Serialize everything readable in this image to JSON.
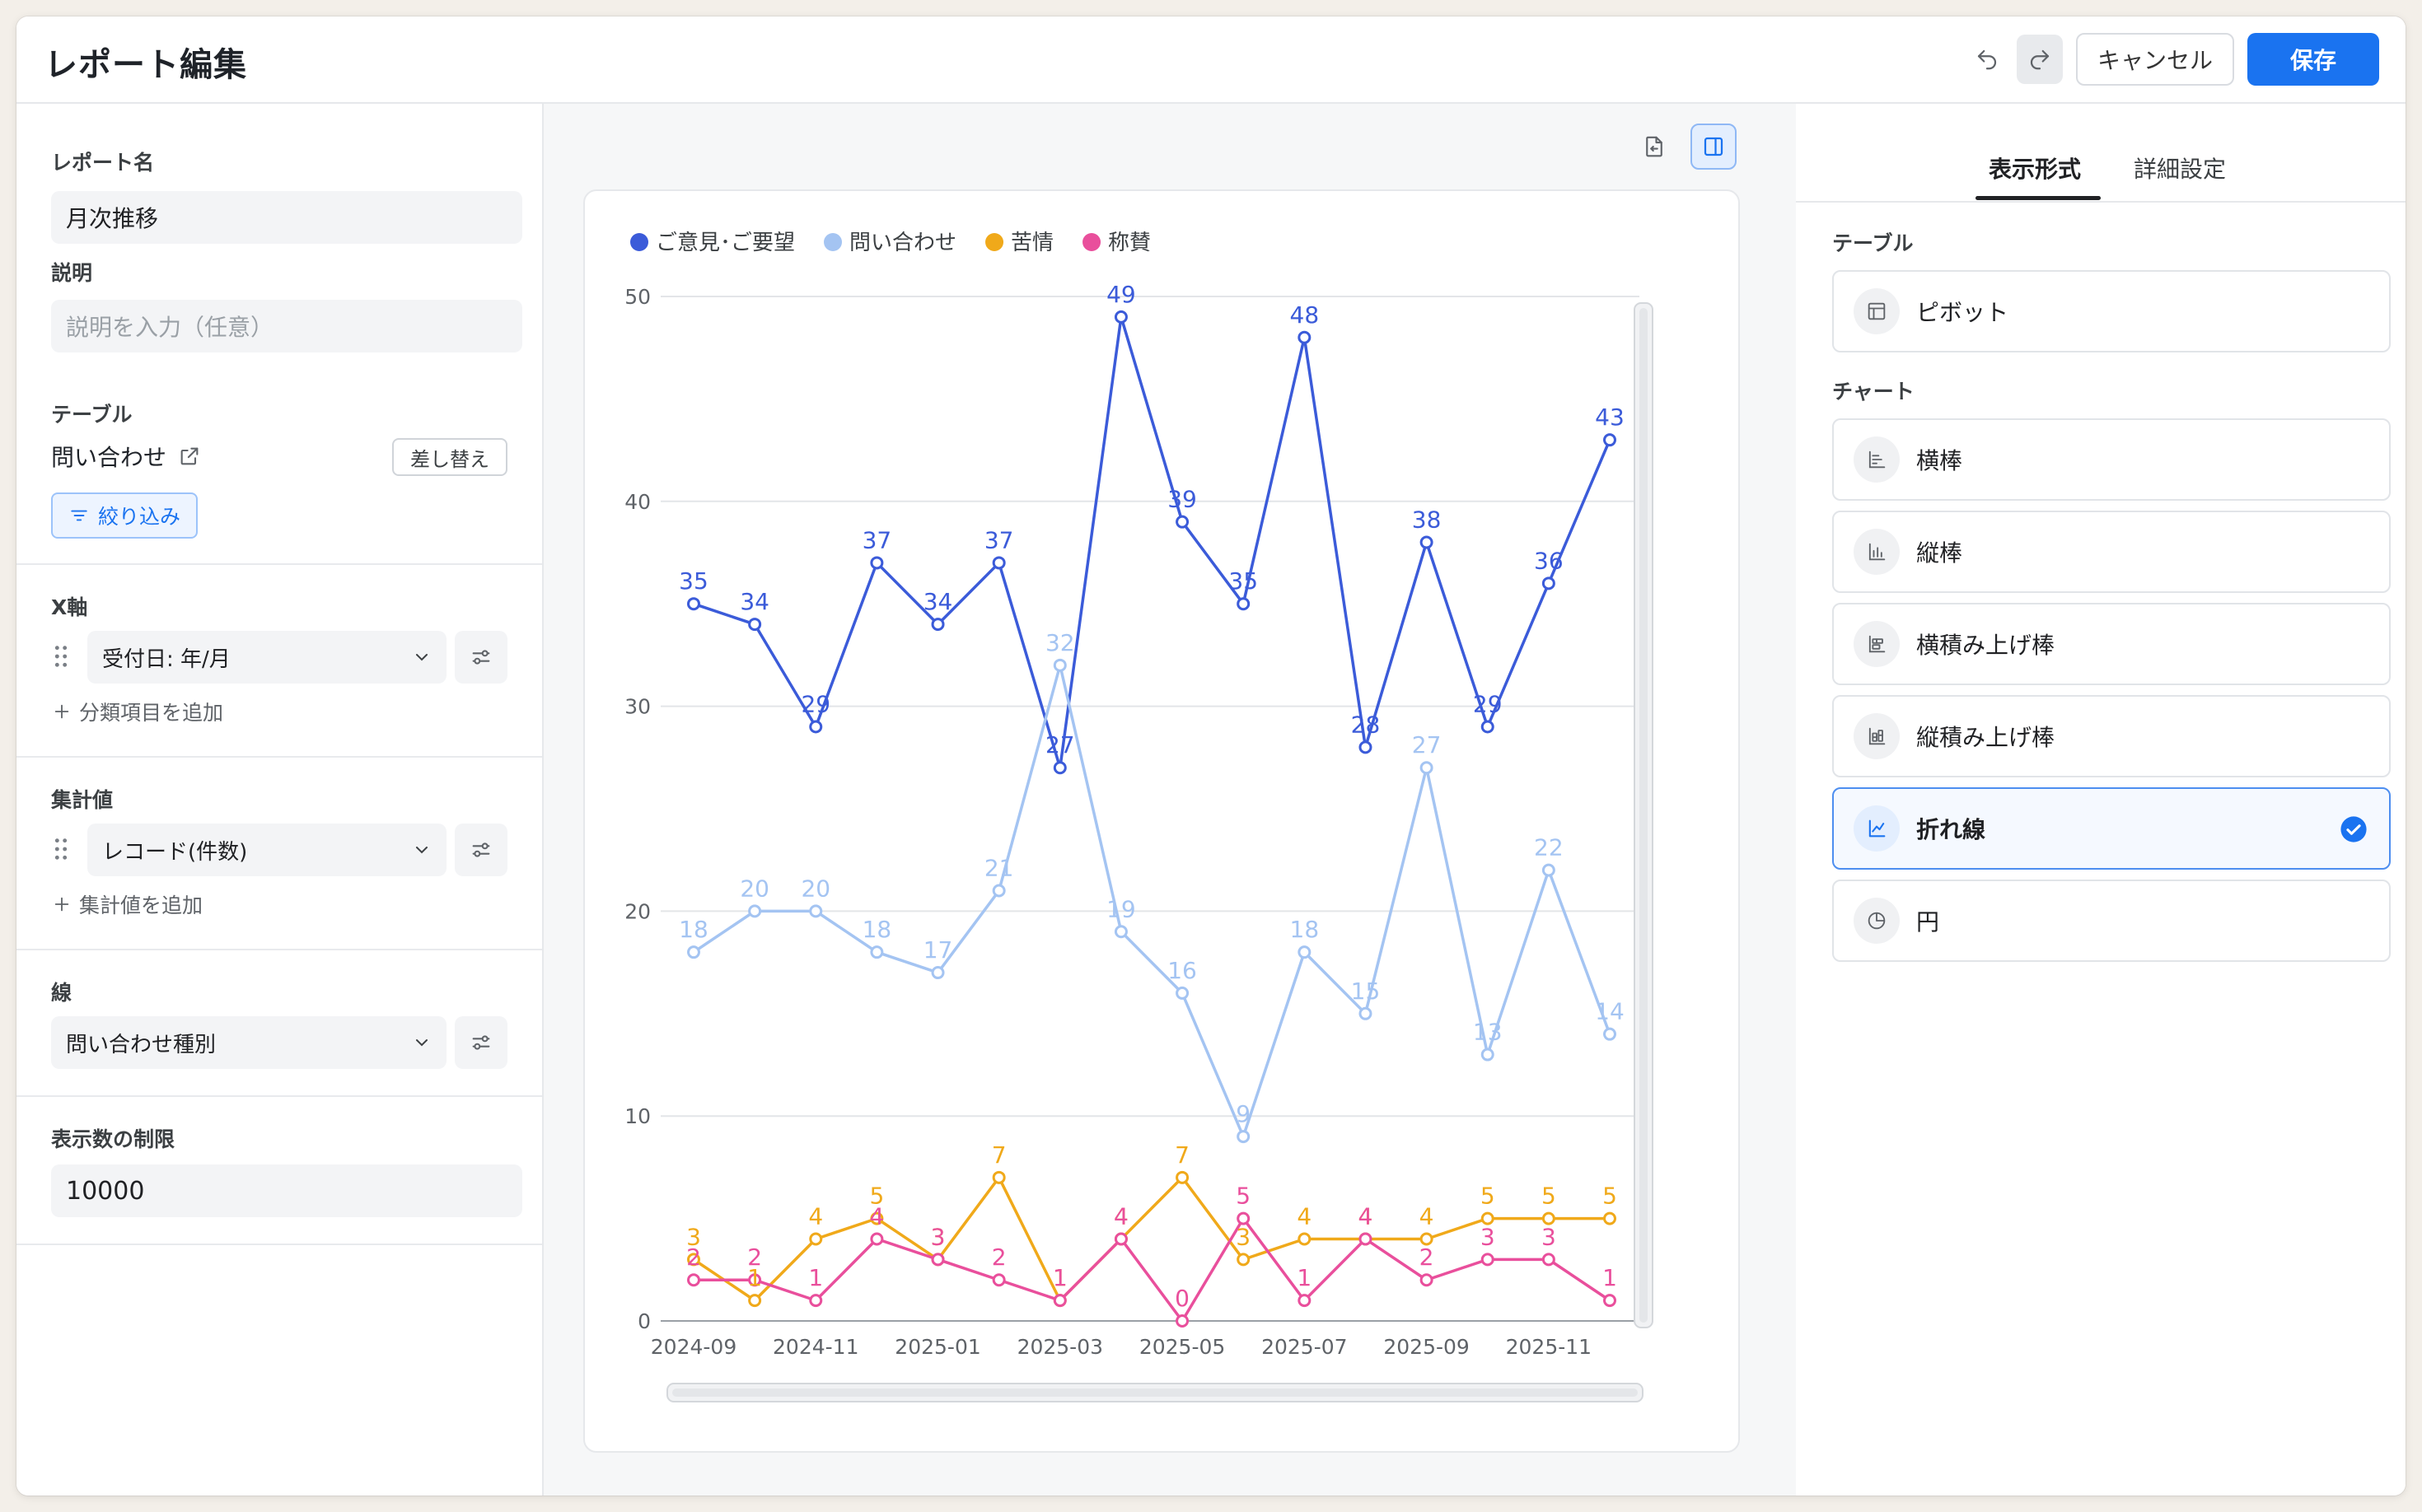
{
  "header": {
    "title": "レポート編集",
    "cancel_label": "キャンセル",
    "save_label": "保存"
  },
  "left": {
    "report_name_label": "レポート名",
    "report_name_value": "月次推移",
    "description_label": "説明",
    "description_placeholder": "説明を入力（任意）",
    "table_label": "テーブル",
    "table_name": "問い合わせ",
    "replace_label": "差し替え",
    "filter_label": "絞り込み",
    "xaxis_label": "X軸",
    "xaxis_value": "受付日: 年/月",
    "add_category_label": "分類項目を追加",
    "aggregate_label": "集計値",
    "aggregate_value": "レコード(件数)",
    "add_aggregate_label": "集計値を追加",
    "line_label": "線",
    "line_value": "問い合わせ種別",
    "limit_label": "表示数の制限",
    "limit_value": "10000"
  },
  "right": {
    "tabs": [
      {
        "label": "表示形式"
      },
      {
        "label": "詳細設定"
      }
    ],
    "table_group_label": "テーブル",
    "chart_group_label": "チャート",
    "types": [
      {
        "label": "ピボット",
        "icon": "table-icon"
      },
      {
        "label": "横棒",
        "icon": "bar-horizontal-icon"
      },
      {
        "label": "縦棒",
        "icon": "bar-vertical-icon"
      },
      {
        "label": "横積み上げ棒",
        "icon": "stacked-bar-horizontal-icon"
      },
      {
        "label": "縦積み上げ棒",
        "icon": "stacked-bar-vertical-icon"
      },
      {
        "label": "折れ線",
        "icon": "line-chart-icon",
        "selected": true
      },
      {
        "label": "円",
        "icon": "pie-chart-icon"
      }
    ]
  },
  "colors": {
    "accent": "#1a73f0",
    "series_1": "#3b5bd9",
    "series_2": "#a4c4f2",
    "series_3": "#f0a91a",
    "series_4": "#e94f9c"
  },
  "chart_data": {
    "type": "line",
    "x": [
      "2024-09",
      "2024-10",
      "2024-11",
      "2024-12",
      "2025-01",
      "2025-02",
      "2025-03",
      "2025-04",
      "2025-05",
      "2025-06",
      "2025-07",
      "2025-08",
      "2025-09",
      "2025-10",
      "2025-11",
      "2025-12"
    ],
    "x_tick_labels": [
      "2024-09",
      "2024-11",
      "2025-01",
      "2025-03",
      "2025-05",
      "2025-07",
      "2025-09",
      "2025-11"
    ],
    "y_ticks": [
      0,
      10,
      20,
      30,
      40,
      50
    ],
    "ylim": [
      0,
      50
    ],
    "grid": true,
    "legend_position": "top-left",
    "data_labels": true,
    "series": [
      {
        "name": "ご意見･ご要望",
        "color": "#3b5bd9",
        "values": [
          35,
          34,
          29,
          37,
          34,
          37,
          27,
          49,
          39,
          35,
          48,
          28,
          38,
          29,
          36,
          43
        ]
      },
      {
        "name": "問い合わせ",
        "color": "#a4c4f2",
        "values": [
          18,
          20,
          20,
          18,
          17,
          21,
          32,
          19,
          16,
          9,
          18,
          15,
          27,
          13,
          22,
          14
        ]
      },
      {
        "name": "苦情",
        "color": "#f0a91a",
        "values": [
          3,
          1,
          4,
          5,
          3,
          7,
          1,
          4,
          7,
          3,
          4,
          4,
          4,
          5,
          5,
          5
        ]
      },
      {
        "name": "称賛",
        "color": "#e94f9c",
        "values": [
          2,
          2,
          1,
          4,
          3,
          2,
          1,
          4,
          0,
          5,
          1,
          4,
          2,
          3,
          3,
          1
        ]
      }
    ]
  }
}
